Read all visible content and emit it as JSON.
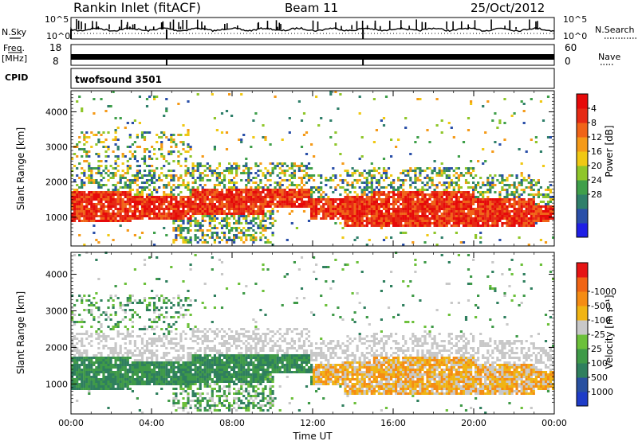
{
  "header": {
    "station": "Rankin Inlet (fitACF)",
    "beam": "Beam 11",
    "date": "25/Oct/2012"
  },
  "info_panels": {
    "nsky_label": "N.Sky",
    "nsky_ticks": [
      "10^5",
      "10^0"
    ],
    "nsearch_label": "N.Search",
    "nsearch_ticks": [
      "10^5",
      "10^0"
    ],
    "freq_label_1": "Freq.",
    "freq_label_2": "[MHz]",
    "freq_ticks": [
      "18",
      "8"
    ],
    "nave_label": "Nave",
    "nave_ticks": [
      "60",
      "0"
    ],
    "cpid_label": "CPID",
    "cpid_value": "twofsound 3501"
  },
  "chart_data": [
    {
      "type": "heatmap",
      "ylabel": "Slant Range [km]",
      "xlabel": "",
      "xlim": [
        0,
        24
      ],
      "ylim": [
        180,
        4600
      ],
      "yticks": [
        "1000",
        "2000",
        "3000",
        "4000"
      ],
      "colorbar": {
        "label": "Power [dB]",
        "ticks": [
          "4",
          "8",
          "12",
          "16",
          "20",
          "24",
          "28"
        ],
        "colors": [
          "#1f1fe6",
          "#2a4fa8",
          "#2f7f6a",
          "#3f9f4a",
          "#8fc62a",
          "#f0c814",
          "#f59a18",
          "#f06418",
          "#e62a14",
          "#e60a0a"
        ]
      }
    },
    {
      "type": "heatmap",
      "ylabel": "Slant Range [km]",
      "xlabel": "Time UT",
      "xlim": [
        0,
        24
      ],
      "ylim": [
        180,
        4600
      ],
      "yticks": [
        "1000",
        "2000",
        "3000",
        "4000"
      ],
      "xticks": [
        "00:00",
        "04:00",
        "08:00",
        "12:00",
        "16:00",
        "20:00",
        "00:00"
      ],
      "colorbar": {
        "label": "Velocity [m s⁻¹]",
        "ticks": [
          "1000",
          "500",
          "100",
          "25",
          "-25",
          "-100",
          "-500",
          "-1000"
        ],
        "colors": [
          "#1e3cc8",
          "#2850a0",
          "#2f7f5e",
          "#3f9a48",
          "#6cc03a",
          "#c8c8c8",
          "#f0b414",
          "#f58c14",
          "#f06414",
          "#e61414"
        ]
      }
    }
  ]
}
